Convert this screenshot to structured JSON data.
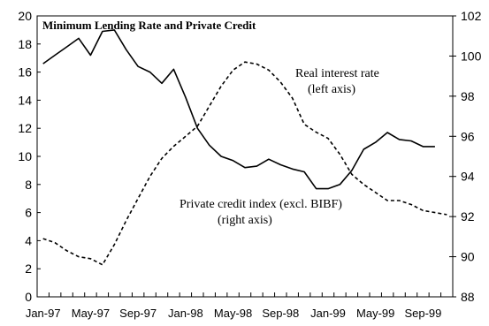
{
  "chart_data": {
    "type": "line",
    "title": "Minimum Lending Rate and Private Credit",
    "x_tick_labels": [
      "Jan-97",
      "May-97",
      "Sep-97",
      "Jan-98",
      "May-98",
      "Sep-98",
      "Jan-99",
      "May-99",
      "Sep-99"
    ],
    "left_axis": {
      "ylim": [
        0,
        20
      ],
      "ticks": [
        0,
        2,
        4,
        6,
        8,
        10,
        12,
        14,
        16,
        18,
        20
      ]
    },
    "right_axis": {
      "ylim": [
        88,
        102
      ],
      "ticks": [
        88,
        90,
        92,
        94,
        96,
        98,
        100,
        102
      ]
    },
    "grid": false,
    "series": [
      {
        "name": "Real interest rate",
        "axis": "left",
        "style": "solid",
        "x": [
          "Jan-97",
          "Feb-97",
          "Mar-97",
          "Apr-97",
          "May-97",
          "Jun-97",
          "Jul-97",
          "Aug-97",
          "Sep-97",
          "Oct-97",
          "Nov-97",
          "Dec-97",
          "Jan-98",
          "Feb-98",
          "Mar-98",
          "Apr-98",
          "May-98",
          "Jun-98",
          "Jul-98",
          "Aug-98",
          "Sep-98",
          "Oct-98",
          "Nov-98",
          "Dec-98",
          "Jan-99",
          "Feb-99",
          "Mar-99",
          "Apr-99",
          "May-99",
          "Jun-99",
          "Jul-99",
          "Aug-99",
          "Sep-99",
          "Oct-99"
        ],
        "values": [
          16.6,
          17.2,
          17.8,
          18.4,
          17.2,
          18.9,
          19.0,
          17.6,
          16.4,
          16.0,
          15.2,
          16.2,
          14.2,
          12.0,
          10.8,
          10.0,
          9.7,
          9.2,
          9.3,
          9.8,
          9.4,
          9.1,
          8.9,
          7.7,
          7.7,
          8.0,
          9.0,
          10.5,
          11.0,
          11.7,
          11.2,
          11.1,
          10.7,
          10.7
        ]
      },
      {
        "name": "Private credit index (excl. BIBF)",
        "axis": "right",
        "style": "dashed",
        "x": [
          "Jan-97",
          "Feb-97",
          "Mar-97",
          "Apr-97",
          "May-97",
          "Jun-97",
          "Jul-97",
          "Aug-97",
          "Sep-97",
          "Oct-97",
          "Nov-97",
          "Dec-97",
          "Jan-98",
          "Feb-98",
          "Mar-98",
          "Apr-98",
          "May-98",
          "Jun-98",
          "Jul-98",
          "Aug-98",
          "Sep-98",
          "Oct-98",
          "Nov-98",
          "Dec-98",
          "Jan-99",
          "Feb-99",
          "Mar-99",
          "Apr-99",
          "May-99",
          "Jun-99",
          "Jul-99",
          "Aug-99",
          "Sep-99",
          "Oct-99",
          "Nov-99"
        ],
        "values": [
          90.9,
          90.7,
          90.3,
          90.0,
          89.9,
          89.6,
          90.6,
          91.8,
          92.9,
          94.0,
          94.9,
          95.5,
          96.0,
          96.5,
          97.5,
          98.5,
          99.3,
          99.7,
          99.6,
          99.3,
          98.7,
          97.9,
          96.6,
          96.2,
          95.9,
          95.1,
          94.1,
          93.6,
          93.2,
          92.8,
          92.8,
          92.6,
          92.3,
          92.2,
          92.1
        ]
      }
    ],
    "annotations": [
      {
        "lines": [
          "Real interest rate",
          "(left axis)"
        ],
        "series": "Real interest rate"
      },
      {
        "lines": [
          "Private credit index (excl. BIBF)",
          "(right axis)"
        ],
        "series": "Private credit index (excl. BIBF)"
      }
    ]
  }
}
